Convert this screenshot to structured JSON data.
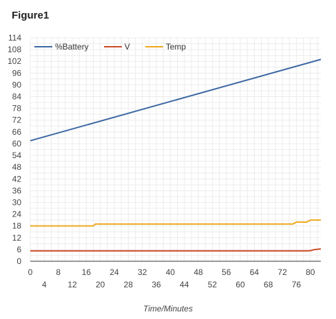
{
  "chart_data": {
    "type": "line",
    "title": "Figure1",
    "xlabel": "Time/Minutes",
    "ylabel": "",
    "xlim": [
      0,
      83
    ],
    "ylim": [
      0,
      114
    ],
    "x_ticks": [
      0,
      4,
      8,
      12,
      16,
      20,
      24,
      28,
      32,
      36,
      40,
      44,
      48,
      52,
      56,
      60,
      64,
      68,
      72,
      76,
      80
    ],
    "y_ticks": [
      0,
      6,
      12,
      18,
      24,
      30,
      36,
      42,
      48,
      54,
      60,
      66,
      72,
      78,
      84,
      90,
      96,
      102,
      108,
      114
    ],
    "grid": true,
    "legend_position": "top-left",
    "series": [
      {
        "name": "%Battery",
        "color": "#3c68a3",
        "x": [
          0,
          83
        ],
        "y": [
          61.5,
          103
        ]
      },
      {
        "name": "V",
        "color": "#cc4b26",
        "x": [
          0,
          79,
          80,
          81,
          82,
          83
        ],
        "y": [
          5.3,
          5.3,
          5.4,
          5.9,
          6.1,
          6.3
        ]
      },
      {
        "name": "Temp",
        "color": "#f0a81d",
        "x": [
          0,
          18,
          18.6,
          75,
          76,
          79,
          80,
          83
        ],
        "y": [
          18,
          18,
          19,
          19,
          20,
          20,
          21,
          21
        ]
      }
    ]
  }
}
